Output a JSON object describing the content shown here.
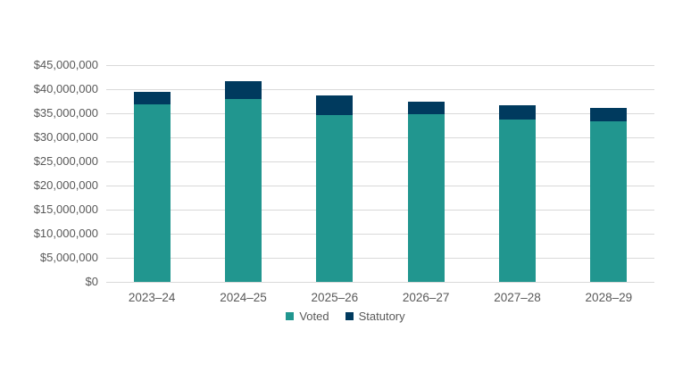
{
  "chart_data": {
    "type": "bar",
    "stacked": true,
    "title": "",
    "xlabel": "",
    "ylabel": "",
    "categories": [
      "2023–24",
      "2024–25",
      "2025–26",
      "2026–27",
      "2027–28",
      "2028–29"
    ],
    "series": [
      {
        "name": "Voted",
        "color": "#21968f",
        "values": [
          36900000,
          38000000,
          34700000,
          34800000,
          33700000,
          33300000
        ]
      },
      {
        "name": "Statutory",
        "color": "#003a5e",
        "values": [
          2600000,
          3700000,
          4000000,
          2700000,
          2900000,
          2800000
        ]
      }
    ],
    "ylim": [
      0,
      45000000
    ],
    "ytick_step": 5000000,
    "ytick_labels": [
      "$0",
      "$5,000,000",
      "$10,000,000",
      "$15,000,000",
      "$20,000,000",
      "$25,000,000",
      "$30,000,000",
      "$35,000,000",
      "$40,000,000",
      "$45,000,000"
    ],
    "grid": true,
    "legend_position": "bottom-center",
    "colors": {
      "gridline": "#d9d9d9",
      "axis_text": "#595959",
      "background": "#ffffff"
    }
  }
}
